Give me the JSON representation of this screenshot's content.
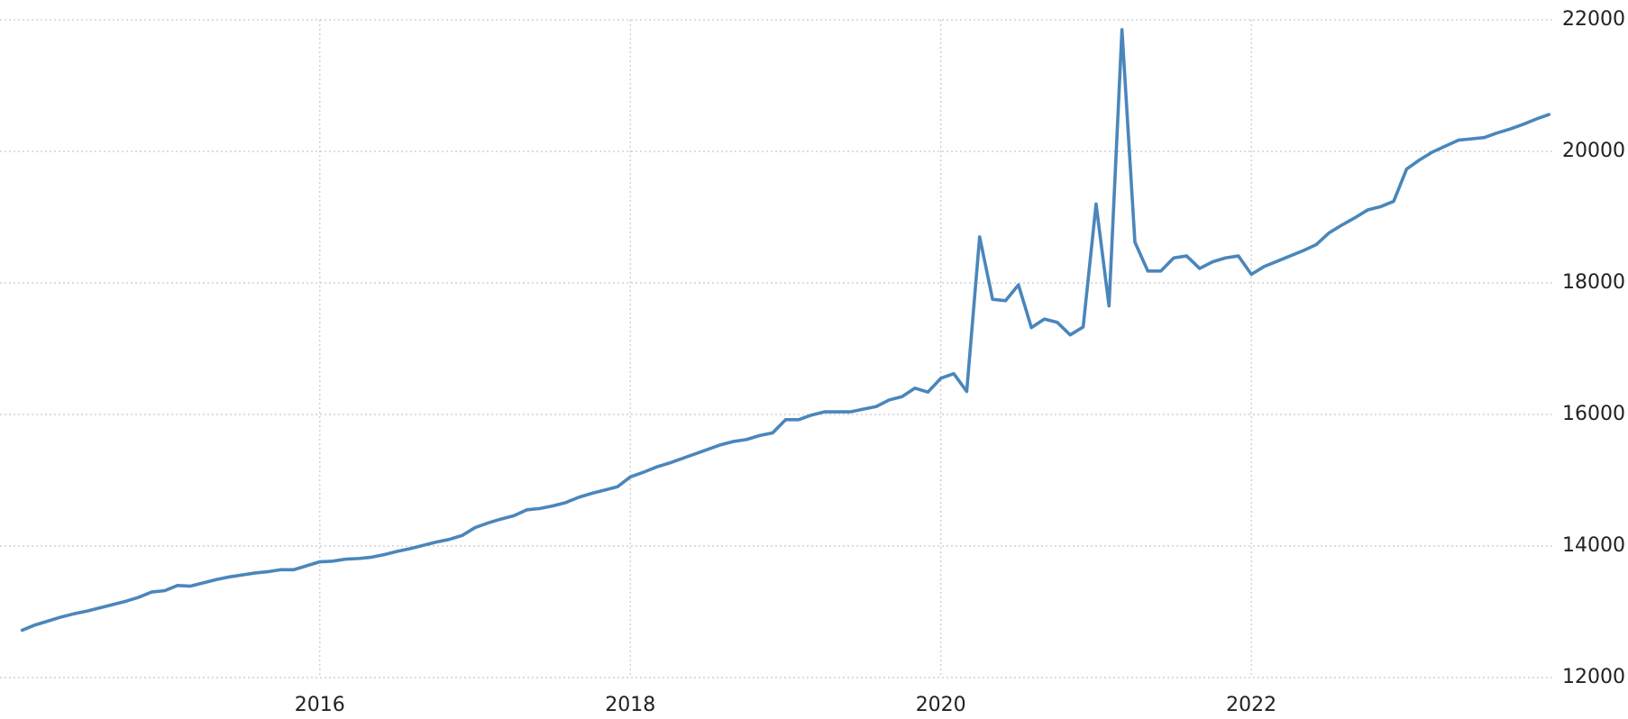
{
  "chart_data": {
    "type": "line",
    "x": [
      2014.0833,
      2014.1667,
      2014.25,
      2014.3333,
      2014.4167,
      2014.5,
      2014.5833,
      2014.6667,
      2014.75,
      2014.8333,
      2014.9167,
      2015,
      2015.0833,
      2015.1667,
      2015.25,
      2015.3333,
      2015.4167,
      2015.5,
      2015.5833,
      2015.6667,
      2015.75,
      2015.8333,
      2015.9167,
      2016,
      2016.0833,
      2016.1667,
      2016.25,
      2016.3333,
      2016.4167,
      2016.5,
      2016.5833,
      2016.6667,
      2016.75,
      2016.8333,
      2016.9167,
      2017,
      2017.0833,
      2017.1667,
      2017.25,
      2017.3333,
      2017.4167,
      2017.5,
      2017.5833,
      2017.6667,
      2017.75,
      2017.8333,
      2017.9167,
      2018,
      2018.0833,
      2018.1667,
      2018.25,
      2018.3333,
      2018.4167,
      2018.5,
      2018.5833,
      2018.6667,
      2018.75,
      2018.8333,
      2018.9167,
      2019,
      2019.0833,
      2019.1667,
      2019.25,
      2019.3333,
      2019.4167,
      2019.5,
      2019.5833,
      2019.6667,
      2019.75,
      2019.8333,
      2019.9167,
      2020,
      2020.0833,
      2020.1667,
      2020.25,
      2020.3333,
      2020.4167,
      2020.5,
      2020.5833,
      2020.6667,
      2020.75,
      2020.8333,
      2020.9167,
      2021,
      2021.0833,
      2021.1667,
      2021.25,
      2021.3333,
      2021.4167,
      2021.5,
      2021.5833,
      2021.6667,
      2021.75,
      2021.8333,
      2021.9167,
      2022,
      2022.0833,
      2022.1667,
      2022.25,
      2022.3333,
      2022.4167,
      2022.5,
      2022.5833,
      2022.6667,
      2022.75,
      2022.8333,
      2022.9167,
      2023,
      2023.0833,
      2023.1667,
      2023.25,
      2023.3333,
      2023.4167,
      2023.5,
      2023.5833,
      2023.6667,
      2023.75,
      2023.8333,
      2023.9167
    ],
    "series": [
      {
        "color": "#4a86bb",
        "values": [
          12720,
          12800,
          12860,
          12920,
          12970,
          13010,
          13060,
          13110,
          13160,
          13220,
          13300,
          13320,
          13400,
          13390,
          13440,
          13490,
          13530,
          13560,
          13590,
          13610,
          13640,
          13640,
          13700,
          13760,
          13770,
          13800,
          13810,
          13830,
          13870,
          13920,
          13960,
          14010,
          14060,
          14100,
          14160,
          14280,
          14350,
          14410,
          14460,
          14550,
          14570,
          14610,
          14660,
          14740,
          14800,
          14850,
          14900,
          15050,
          15120,
          15200,
          15260,
          15330,
          15400,
          15470,
          15540,
          15590,
          15620,
          15680,
          15720,
          15920,
          15920,
          15990,
          16040,
          16040,
          16040,
          16080,
          16120,
          16220,
          16270,
          16400,
          16340,
          16550,
          16620,
          16350,
          18700,
          17750,
          17730,
          17970,
          17320,
          17450,
          17400,
          17210,
          17330,
          19200,
          17650,
          21850,
          18620,
          18180,
          18180,
          18380,
          18410,
          18220,
          18320,
          18380,
          18410,
          18130,
          18250,
          18330,
          18410,
          18490,
          18580,
          18760,
          18880,
          18990,
          19110,
          19160,
          19240,
          19730,
          19870,
          19990,
          20080,
          20170,
          20190,
          20210,
          20280,
          20340,
          20410,
          20490,
          20560
        ]
      }
    ],
    "xlim": [
      2013.94,
      2023.95
    ],
    "xticks": [
      2016,
      2018,
      2020,
      2022
    ],
    "ylim": [
      12000,
      22000
    ],
    "yticks": [
      12000,
      14000,
      16000,
      18000,
      20000,
      22000
    ],
    "grid": true
  }
}
